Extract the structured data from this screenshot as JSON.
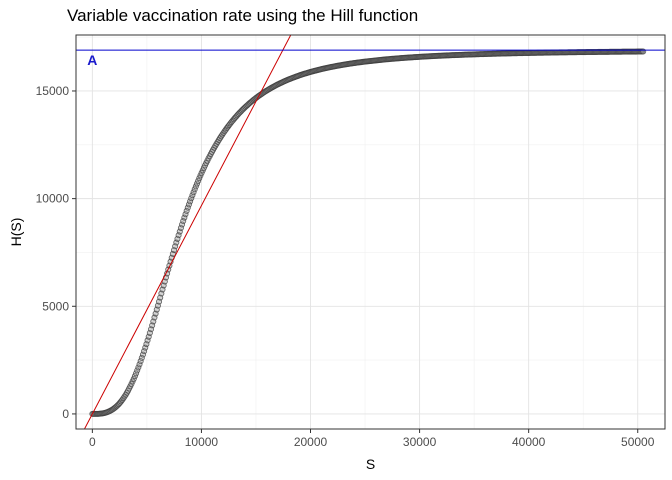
{
  "chart_data": {
    "type": "scatter",
    "title": "Variable vaccination rate using the Hill function",
    "xlabel": "S",
    "ylabel": "H(S)",
    "xlim": [
      -1500,
      52500
    ],
    "ylim": [
      -700,
      17600
    ],
    "x_ticks": [
      0,
      10000,
      20000,
      30000,
      40000,
      50000
    ],
    "x_tick_labels": [
      "0",
      "10000",
      "20000",
      "30000",
      "40000",
      "50000"
    ],
    "y_ticks": [
      0,
      5000,
      10000,
      15000
    ],
    "y_tick_labels": [
      "0",
      "5000",
      "10000",
      "15000"
    ],
    "grid": true,
    "series": [
      {
        "kind": "points",
        "model": "hill",
        "A": 16900,
        "K": 8000,
        "n": 3,
        "x_start": 0,
        "x_end": 50500,
        "count": 480,
        "color": "#4d4d4d"
      },
      {
        "kind": "line",
        "slope": 0.9677,
        "intercept": 0,
        "color": "#cc0000"
      },
      {
        "kind": "hline",
        "y": 16900,
        "color": "#0000cc"
      }
    ],
    "annotations": [
      {
        "text": "A",
        "x": 0,
        "y": 16450,
        "color": "#1a1acc"
      }
    ]
  }
}
